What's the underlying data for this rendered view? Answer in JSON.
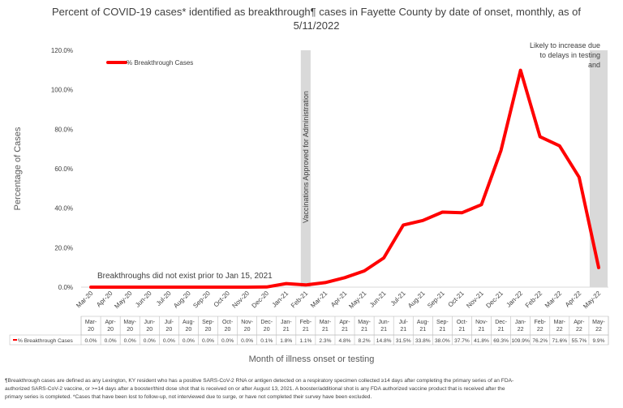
{
  "title_line1": "Percent of COVID-19 cases* identified as breakthrough¶ cases in Fayette County by date of onset, monthly, as of",
  "title_line2": "5/11/2022",
  "chart_data": {
    "type": "line",
    "title": "Percent of COVID-19 cases* identified as breakthrough¶ cases in Fayette County by date of onset, monthly, as of 5/11/2022",
    "xlabel": "Month of illness onset or testing",
    "ylabel": "Percentage of Cases",
    "ylim": [
      0,
      120
    ],
    "yticks": [
      "0.0%",
      "20.0%",
      "40.0%",
      "60.0%",
      "80.0%",
      "100.0%",
      "120.0%"
    ],
    "grid": false,
    "legend": "top-left",
    "categories": [
      "Mar-20",
      "Apr-20",
      "May-20",
      "Jun-20",
      "Jul-20",
      "Aug-20",
      "Sep-20",
      "Oct-20",
      "Nov-20",
      "Dec-20",
      "Jan-21",
      "Feb-21",
      "Mar-21",
      "Apr-21",
      "May-21",
      "Jun-21",
      "Jul-21",
      "Aug-21",
      "Sep-21",
      "Oct-21",
      "Nov-21",
      "Dec-21",
      "Jan-22",
      "Feb-22",
      "Mar-22",
      "Apr-22",
      "May-22"
    ],
    "series": [
      {
        "name": "% Breakthrough Cases",
        "color": "#ff0000",
        "values": [
          0.0,
          0.0,
          0.0,
          0.0,
          0.0,
          0.0,
          0.0,
          0.0,
          0.0,
          0.1,
          1.8,
          1.1,
          2.3,
          4.8,
          8.2,
          14.8,
          31.5,
          33.8,
          38.0,
          37.7,
          41.8,
          69.3,
          109.9,
          76.2,
          71.6,
          55.7,
          9.9
        ],
        "labels": [
          "0.0%",
          "0.0%",
          "0.0%",
          "0.0%",
          "0.0%",
          "0.0%",
          "0.0%",
          "0.0%",
          "0.0%",
          "0.1%",
          "1.8%",
          "1.1%",
          "2.3%",
          "4.8%",
          "8.2%",
          "14.8%",
          "31.5%",
          "33.8%",
          "38.0%",
          "37.7%",
          "41.8%",
          "69.3%",
          "109.9%",
          "76.2%",
          "71.6%",
          "55.7%",
          "9.9%"
        ]
      }
    ],
    "annotations": {
      "vaccine": "Vaccinations Approved for Administration",
      "no_breakthrough": "Breakthroughs did not exist prior to Jan 15, 2021",
      "likely_increase": "Likely to increase due to delays in testing and reporting"
    },
    "shaded_color": "#d9d9d9"
  },
  "footnote_line1": "¶Breakthrough cases are defined as any Lexington, KY resident who has a positive SARS-CoV-2 RNA or antigen detected on a respiratory specimen collected ≥14 days after completing the primary series of an FDA-",
  "footnote_line2": "authorized SARS-CoV-2 vaccine, or >=14 days after a booster/third dose shot that is received on or after August 13, 2021.  A booster/additional shot is any FDA authorized vaccine product that is received after the",
  "footnote_line3": "primary series is completed.  *Cases that have been lost to follow-up, not interviewed due to surge, or have not completed their survey have been excluded."
}
